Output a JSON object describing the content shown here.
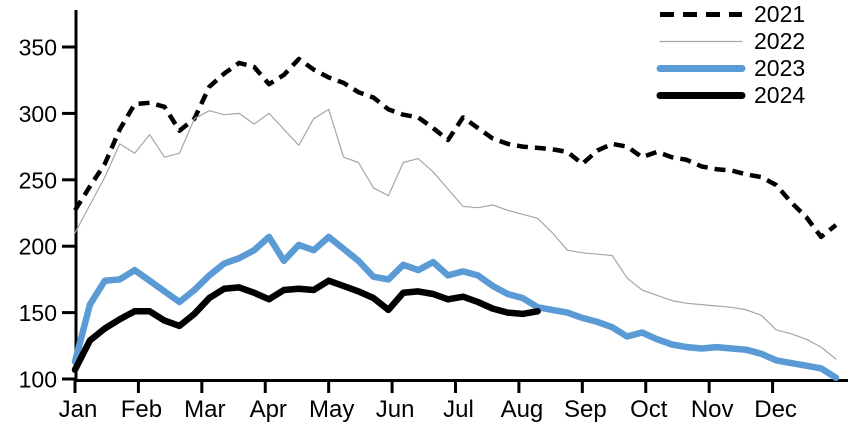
{
  "chart_data": {
    "type": "line",
    "title": "",
    "x_axis": {
      "label": "",
      "tick_labels": [
        "Jan",
        "Feb",
        "Mar",
        "Apr",
        "May",
        "Jun",
        "Jul",
        "Aug",
        "Sep",
        "Oct",
        "Nov",
        "Dec"
      ]
    },
    "y_axis": {
      "label": "",
      "ticks": [
        100,
        150,
        200,
        250,
        300,
        350
      ],
      "min": 100,
      "max": 350
    },
    "grid": "off",
    "legend_position": "top-right",
    "x_unit": "weekly points spanning Jan-Dec",
    "series": [
      {
        "name": "2021",
        "color": "#000000",
        "line_style": "dashed",
        "line_width": 4.5,
        "values": [
          227,
          245,
          262,
          288,
          307,
          308,
          305,
          287,
          296,
          320,
          330,
          338,
          335,
          322,
          329,
          341,
          333,
          327,
          323,
          316,
          312,
          303,
          299,
          297,
          289,
          280,
          297,
          289,
          281,
          277,
          275,
          274,
          273,
          271,
          262,
          272,
          277,
          275,
          267,
          271,
          267,
          265,
          260,
          258,
          257,
          254,
          252,
          246,
          233,
          222,
          207,
          216
        ]
      },
      {
        "name": "2022",
        "color": "#a6a6a6",
        "line_style": "solid",
        "line_width": 1.2,
        "values": [
          210,
          231,
          252,
          277,
          270,
          284,
          267,
          270,
          296,
          302,
          299,
          300,
          292,
          300,
          288,
          276,
          296,
          303,
          267,
          263,
          244,
          238,
          263,
          266,
          256,
          243,
          230,
          229,
          231,
          227,
          224,
          221,
          210,
          197,
          195,
          194,
          193,
          176,
          167,
          163,
          159,
          157,
          156,
          155,
          154,
          152,
          148,
          137,
          134,
          130,
          124,
          115
        ]
      },
      {
        "name": "2023",
        "color": "#5b9bd5",
        "line_style": "solid",
        "line_width": 6.5,
        "values": [
          113,
          156,
          174,
          175,
          182,
          174,
          166,
          158,
          167,
          178,
          187,
          191,
          197,
          207,
          189,
          201,
          197,
          207,
          198,
          189,
          177,
          175,
          186,
          182,
          188,
          178,
          181,
          178,
          170,
          164,
          161,
          154,
          152,
          150,
          146,
          143,
          139,
          132,
          135,
          130,
          126,
          124,
          123,
          124,
          123,
          122,
          119,
          114,
          112,
          110,
          108,
          101
        ]
      },
      {
        "name": "2024",
        "color": "#000000",
        "line_style": "solid",
        "line_width": 6.5,
        "values": [
          107,
          129,
          138,
          145,
          151,
          151,
          144,
          140,
          149,
          161,
          168,
          169,
          165,
          160,
          167,
          168,
          167,
          174,
          170,
          166,
          161,
          152,
          165,
          166,
          164,
          160,
          162,
          158,
          153,
          150,
          149,
          151
        ]
      }
    ]
  }
}
